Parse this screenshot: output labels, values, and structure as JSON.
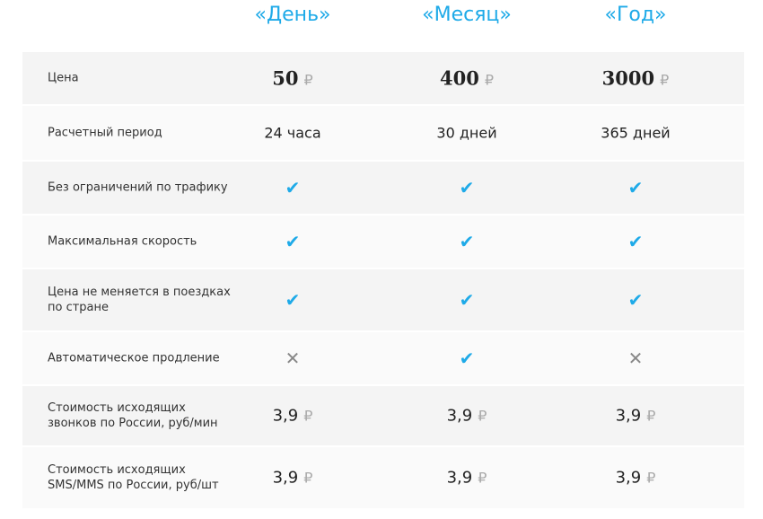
{
  "plans": [
    "«День»",
    "«Месяц»",
    "«Год»"
  ],
  "colors": {
    "accent": "#1eaae8"
  },
  "currency": "₽",
  "rows": [
    {
      "label": "Цена",
      "type": "price",
      "values": [
        "50",
        "400",
        "3000"
      ]
    },
    {
      "label": "Расчетный период",
      "type": "text",
      "values": [
        "24 часа",
        "30 дней",
        "365 дней"
      ]
    },
    {
      "label": "Без ограничений по трафику",
      "type": "bool",
      "values": [
        true,
        true,
        true
      ]
    },
    {
      "label": "Максимальная скорость",
      "type": "bool",
      "values": [
        true,
        true,
        true
      ]
    },
    {
      "label": "Цена не меняется в поездках по стране",
      "type": "bool",
      "values": [
        true,
        true,
        true
      ]
    },
    {
      "label": "Автоматическое продление",
      "type": "bool",
      "values": [
        false,
        true,
        false
      ]
    },
    {
      "label": "Стоимость исходящих звонков по России, руб/мин",
      "type": "num",
      "values": [
        "3,9",
        "3,9",
        "3,9"
      ]
    },
    {
      "label": "Стоимость исходящих SMS/MMS по России, руб/шт",
      "type": "num",
      "values": [
        "3,9",
        "3,9",
        "3,9"
      ]
    }
  ]
}
